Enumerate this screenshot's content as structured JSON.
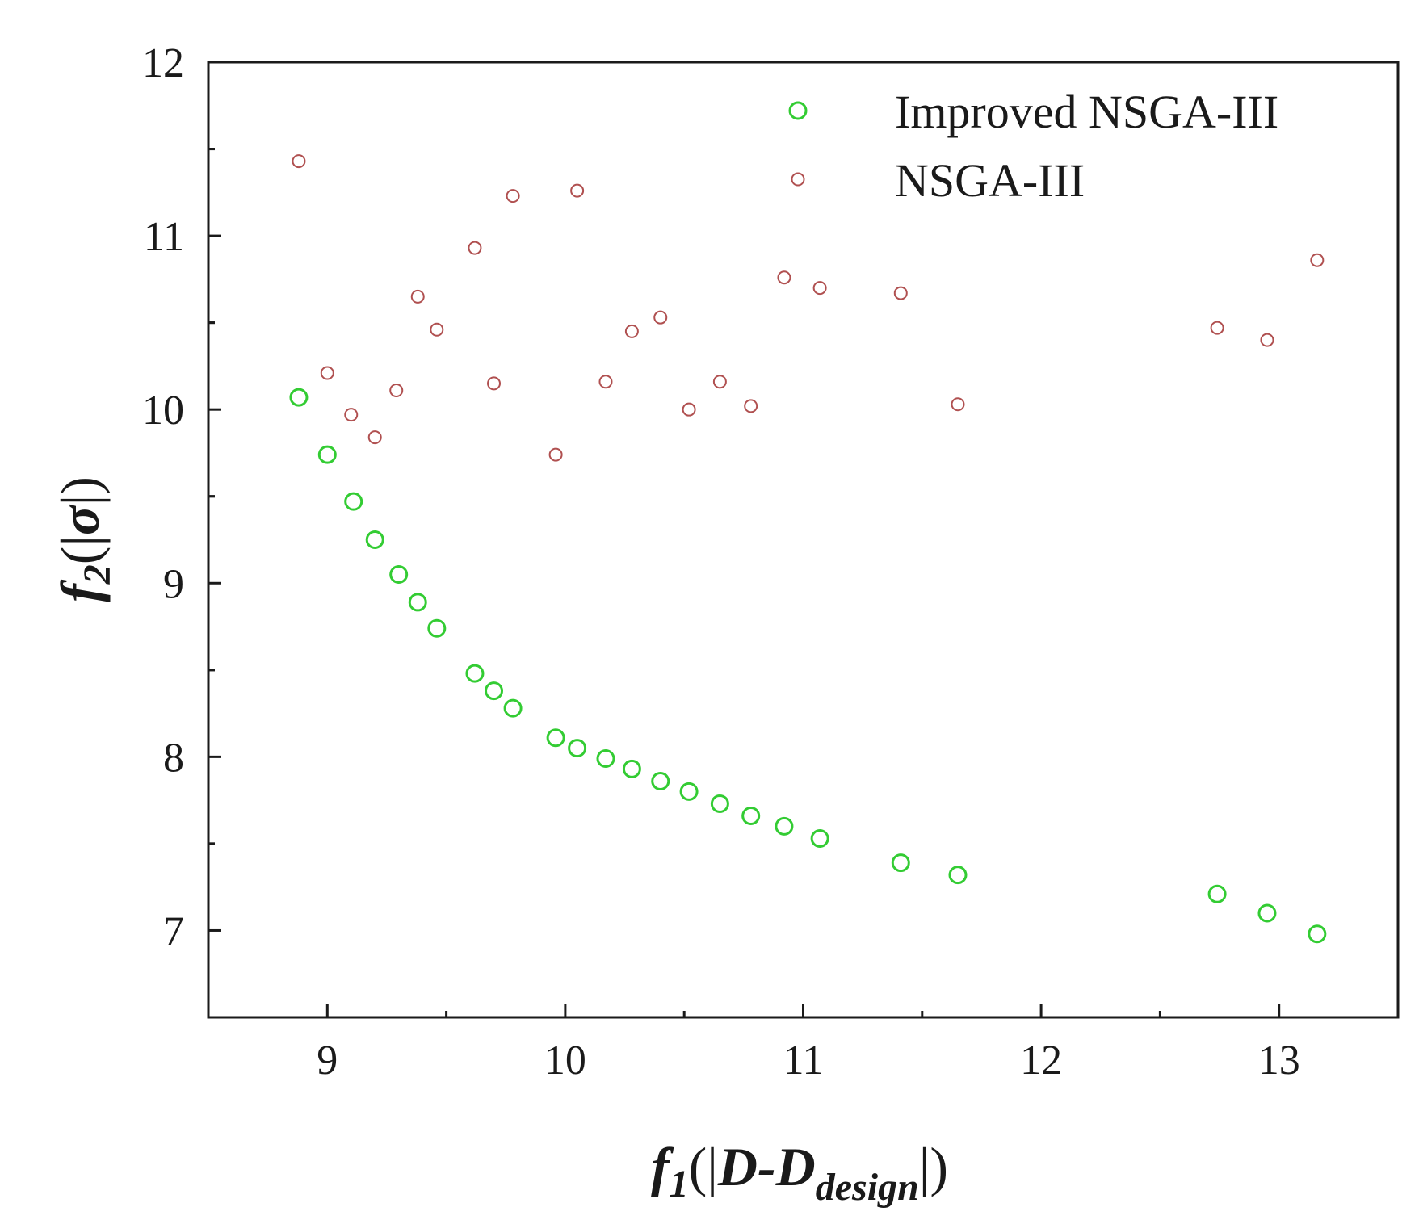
{
  "chart_data": {
    "type": "scatter",
    "title": "",
    "xlabel": {
      "f": "f",
      "sub": "1",
      "open": "(|",
      "main": "D-D",
      "main_sub": "design",
      "close": "|)"
    },
    "ylabel": {
      "f": "f",
      "sub": "2",
      "open": "(|",
      "main": "σ",
      "close": "|)"
    },
    "xlim": [
      8.5,
      13.5
    ],
    "ylim": [
      6.5,
      12
    ],
    "xticks": [
      9,
      10,
      11,
      12,
      13
    ],
    "yticks": [
      7,
      8,
      9,
      10,
      11,
      12
    ],
    "legend_position": "top-right",
    "series": [
      {
        "name": "Improved NSGA-III",
        "color": "#33cc33",
        "marker": "open-circle",
        "x": [
          8.88,
          9.0,
          9.11,
          9.2,
          9.3,
          9.38,
          9.46,
          9.62,
          9.7,
          9.78,
          9.96,
          10.05,
          10.17,
          10.28,
          10.4,
          10.52,
          10.65,
          10.78,
          10.92,
          11.07,
          11.41,
          11.65,
          12.74,
          12.95,
          13.16
        ],
        "y": [
          10.07,
          9.74,
          9.47,
          9.25,
          9.05,
          8.89,
          8.74,
          8.48,
          8.38,
          8.28,
          8.11,
          8.05,
          7.99,
          7.93,
          7.86,
          7.8,
          7.73,
          7.66,
          7.6,
          7.53,
          7.39,
          7.32,
          7.21,
          7.1,
          6.98
        ]
      },
      {
        "name": "NSGA-III",
        "color": "#b05050",
        "marker": "open-circle",
        "x": [
          8.88,
          9.0,
          9.1,
          9.2,
          9.29,
          9.38,
          9.46,
          9.62,
          9.7,
          9.78,
          9.96,
          10.05,
          10.17,
          10.28,
          10.4,
          10.52,
          10.65,
          10.78,
          10.92,
          11.07,
          11.41,
          11.65,
          12.74,
          12.95,
          13.16
        ],
        "y": [
          11.43,
          10.21,
          9.97,
          9.84,
          10.11,
          10.65,
          10.46,
          10.93,
          10.15,
          11.23,
          9.74,
          11.26,
          10.16,
          10.45,
          10.53,
          10.0,
          10.16,
          10.02,
          10.76,
          10.7,
          10.67,
          10.03,
          10.47,
          10.4,
          10.86
        ]
      }
    ]
  }
}
